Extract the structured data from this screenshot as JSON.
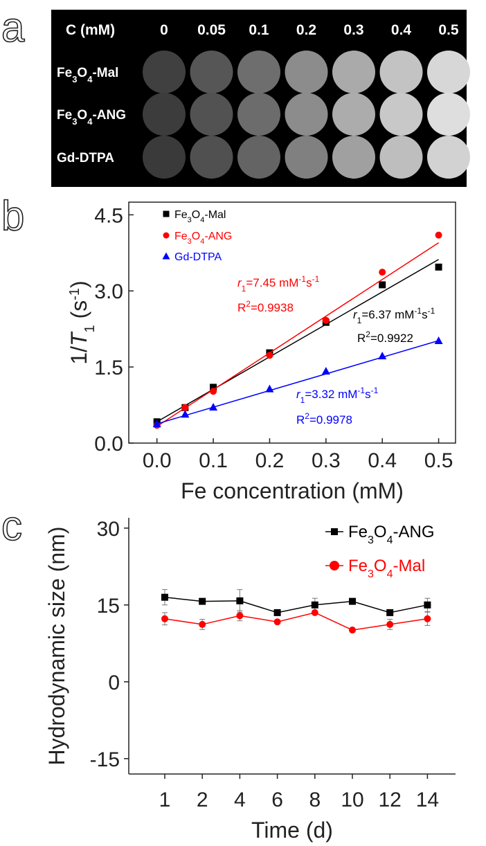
{
  "panel_a": {
    "letter": "a",
    "header_label": "C (mM)",
    "concentrations": [
      "0",
      "0.05",
      "0.1",
      "0.2",
      "0.3",
      "0.4",
      "0.5"
    ],
    "rows": [
      {
        "label_main": "Fe",
        "sub1": "3",
        "mid": "O",
        "sub2": "4",
        "suffix": "-Mal",
        "gray_levels": [
          64,
          86,
          110,
          140,
          170,
          195,
          215
        ]
      },
      {
        "label_main": "Fe",
        "sub1": "3",
        "mid": "O",
        "sub2": "4",
        "suffix": "-ANG",
        "gray_levels": [
          60,
          82,
          108,
          140,
          172,
          200,
          222
        ]
      },
      {
        "label_main": "Gd-DTPA",
        "sub1": "",
        "mid": "",
        "sub2": "",
        "suffix": "",
        "gray_levels": [
          58,
          80,
          100,
          128,
          160,
          190,
          210
        ]
      }
    ]
  },
  "chart_data": [
    {
      "type": "scatter",
      "panel": "b",
      "xlabel": "Fe concentration (mM)",
      "ylabel_prefix": "1/",
      "ylabel_var": "T",
      "ylabel_sub": "1",
      "ylabel_unit": " (s",
      "ylabel_sup": "-1",
      "ylabel_close": ")",
      "xlim": [
        -0.05,
        0.53
      ],
      "ylim": [
        0,
        4.75
      ],
      "xticks": [
        "0.0",
        "0.1",
        "0.2",
        "0.3",
        "0.4",
        "0.5"
      ],
      "xtick_values": [
        0,
        0.1,
        0.2,
        0.3,
        0.4,
        0.5
      ],
      "yticks": [
        "0.0",
        "1.5",
        "3.0",
        "4.5"
      ],
      "ytick_values": [
        0,
        1.5,
        3.0,
        4.5
      ],
      "x": [
        0,
        0.05,
        0.1,
        0.2,
        0.3,
        0.4,
        0.5
      ],
      "series": [
        {
          "name_main": "Fe",
          "sub1": "3",
          "mid": "O",
          "sub2": "4",
          "suffix": "-Mal",
          "color": "#000000",
          "marker": "square",
          "values": [
            0.42,
            0.7,
            1.1,
            1.78,
            2.38,
            3.12,
            3.47
          ],
          "fit": [
            0.42,
            3.62
          ]
        },
        {
          "name_main": "Fe",
          "sub1": "3",
          "mid": "O",
          "sub2": "4",
          "suffix": "-ANG",
          "color": "#ff0000",
          "marker": "circle",
          "values": [
            0.35,
            0.7,
            1.02,
            1.73,
            2.42,
            3.37,
            4.1
          ],
          "fit": [
            0.33,
            3.95
          ]
        },
        {
          "name_main": "Gd-DTPA",
          "sub1": "",
          "mid": "",
          "sub2": "",
          "suffix": "",
          "color": "#0000ff",
          "marker": "triangle",
          "values": [
            0.38,
            0.57,
            0.71,
            1.07,
            1.42,
            1.72,
            2.02
          ],
          "fit": [
            0.38,
            2.02
          ]
        }
      ],
      "annotations": [
        {
          "r_var": "r",
          "r_sub": "1",
          "r_value": "=7.45 mM",
          "u1": "-1",
          "u2": "s",
          "u3": "-1",
          "r2_prefix": "R",
          "r2_sup": "2",
          "r2_value": "=0.9938",
          "color": "#ff0000"
        },
        {
          "r_var": "r",
          "r_sub": "1",
          "r_value": "=6.37 mM",
          "u1": "-1",
          "u2": "s",
          "u3": "-1",
          "r2_prefix": "R",
          "r2_sup": "2",
          "r2_value": "=0.9922",
          "color": "#000000"
        },
        {
          "r_var": "r",
          "r_sub": "1",
          "r_value": "=3.32 mM",
          "u1": "-1",
          "u2": "s",
          "u3": "-1",
          "r2_prefix": "R",
          "r2_sup": "2",
          "r2_value": "=0.9978",
          "color": "#0000ff"
        }
      ],
      "legend": "top-left"
    },
    {
      "type": "line",
      "panel": "c",
      "xlabel": "Time (d)",
      "ylabel": "Hydrodynamic size (nm)",
      "categories": [
        "1",
        "2",
        "4",
        "6",
        "8",
        "10",
        "12",
        "14"
      ],
      "ylim": [
        -18,
        32
      ],
      "yticks": [
        "-15",
        "0",
        "15",
        "30"
      ],
      "ytick_values": [
        -15,
        0,
        15,
        30
      ],
      "series": [
        {
          "name_main": "Fe",
          "sub1": "3",
          "mid": "O",
          "sub2": "4",
          "suffix": "-ANG",
          "color": "#000000",
          "marker": "square",
          "values": [
            16.5,
            15.7,
            15.8,
            13.5,
            15.0,
            15.7,
            13.5,
            15.0
          ],
          "errors": [
            1.5,
            0.3,
            2.2,
            0.3,
            1.3,
            0.3,
            0.3,
            1.3
          ]
        },
        {
          "name_main": "Fe",
          "sub1": "3",
          "mid": "O",
          "sub2": "4",
          "suffix": "-Mal",
          "color": "#ff0000",
          "marker": "circle",
          "values": [
            12.3,
            11.2,
            12.9,
            11.7,
            13.5,
            10.1,
            11.2,
            12.3
          ],
          "errors": [
            1.2,
            1.0,
            1.0,
            0.3,
            0.3,
            0.3,
            1.0,
            1.3
          ]
        }
      ],
      "legend": "top-right"
    }
  ]
}
